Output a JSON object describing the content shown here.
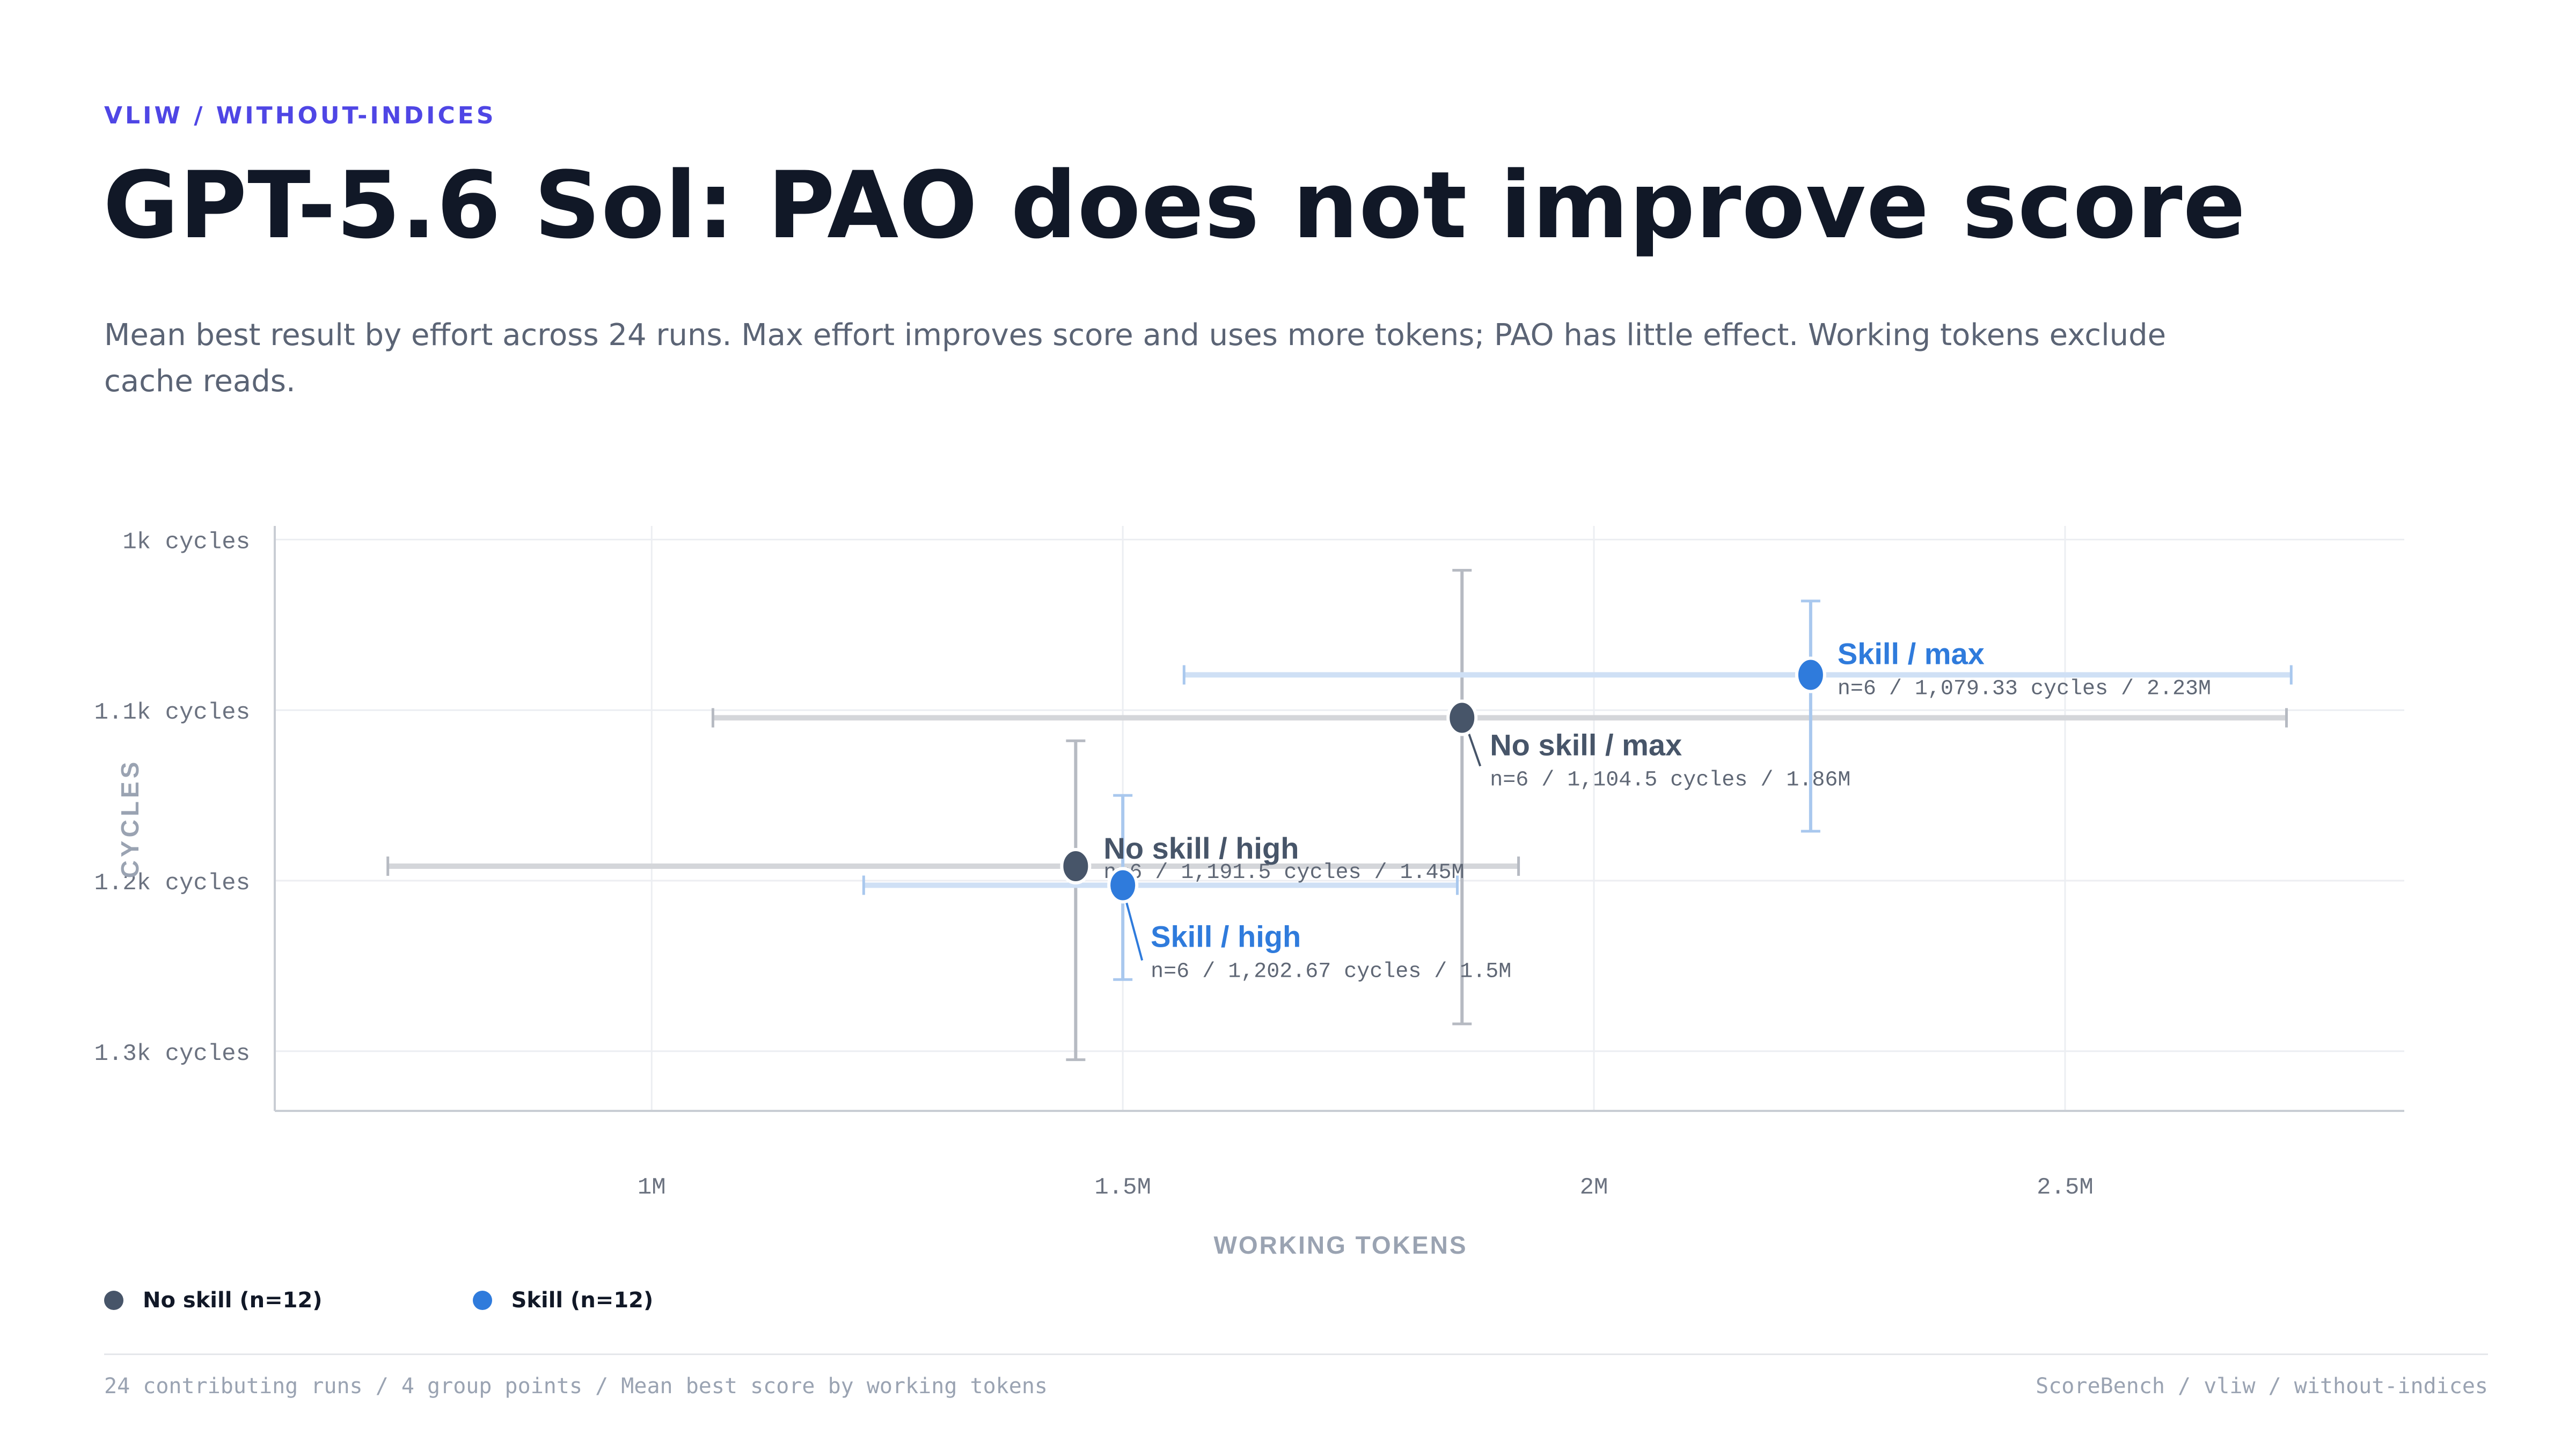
{
  "header": {
    "kicker": "VLIW / WITHOUT-INDICES",
    "title": "GPT-5.6 Sol: PAO does not improve score",
    "subtitle": "Mean best result by effort across 24 runs. Max effort improves score and uses more tokens; PAO has little effect. Working tokens exclude cache reads."
  },
  "colors": {
    "no_skill": "#475569",
    "skill": "#2f7bdc",
    "grid": "#eceef2",
    "axis": "#c9cdd4",
    "tick_text": "#6b7280",
    "axis_title": "#9aa3b2",
    "kicker": "#4f46e5"
  },
  "chart_data": {
    "type": "scatter",
    "xlabel": "WORKING TOKENS",
    "ylabel": "CYCLES",
    "x_ticks": [
      {
        "value": 1000000,
        "label": "1M"
      },
      {
        "value": 1500000,
        "label": "1.5M"
      },
      {
        "value": 2000000,
        "label": "2M"
      },
      {
        "value": 2500000,
        "label": "2.5M"
      }
    ],
    "y_ticks": [
      {
        "value": 1000,
        "label": "1k cycles"
      },
      {
        "value": 1100,
        "label": "1.1k cycles"
      },
      {
        "value": 1200,
        "label": "1.2k cycles"
      },
      {
        "value": 1300,
        "label": "1.3k cycles"
      }
    ],
    "xlim": [
      600000,
      2860000
    ],
    "ylim": [
      992,
      1335
    ],
    "y_inverted": true,
    "grid": true,
    "legend_position": "bottom-left",
    "series": [
      {
        "name": "No skill (n=12)",
        "color_key": "no_skill",
        "points": [
          {
            "label": "No skill / high",
            "detail": "n=6 / 1,191.5 cycles / 1.45M",
            "x": 1450000,
            "y": 1191.5,
            "x_err": [
              720000,
              1920000
            ],
            "y_err": [
              1118,
              1305
            ]
          },
          {
            "label": "No skill / max",
            "detail": "n=6 / 1,104.5 cycles / 1.86M",
            "x": 1860000,
            "y": 1104.5,
            "x_err": [
              1065000,
              2735000
            ],
            "y_err": [
              1018,
              1284
            ]
          }
        ]
      },
      {
        "name": "Skill (n=12)",
        "color_key": "skill",
        "points": [
          {
            "label": "Skill / high",
            "detail": "n=6 / 1,202.67 cycles / 1.5M",
            "x": 1500000,
            "y": 1202.67,
            "x_err": [
              1225000,
              1855000
            ],
            "y_err": [
              1150,
              1258
            ]
          },
          {
            "label": "Skill / max",
            "detail": "n=6 / 1,079.33 cycles / 2.23M",
            "x": 2230000,
            "y": 1079.33,
            "x_err": [
              1565000,
              2740000
            ],
            "y_err": [
              1036,
              1171
            ]
          }
        ]
      }
    ]
  },
  "footer": {
    "left": "24 contributing runs / 4 group points / Mean best score by working tokens",
    "right": "ScoreBench / vliw / without-indices"
  }
}
